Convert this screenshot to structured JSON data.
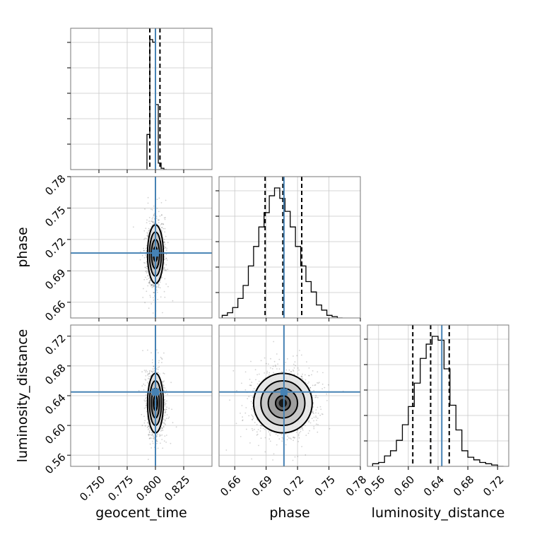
{
  "chart_data": {
    "type": "corner",
    "parameters": [
      "geocent_time",
      "phase",
      "luminosity_distance"
    ],
    "truth": {
      "geocent_time": 0.8,
      "phase": 0.707,
      "luminosity_distance": 0.645
    },
    "quantiles": {
      "geocent_time": [
        0.795,
        0.8,
        0.804
      ],
      "phase": [
        0.689,
        0.706,
        0.724
      ],
      "luminosity_distance": [
        0.606,
        0.63,
        0.655
      ]
    },
    "ranges": {
      "geocent_time": [
        0.725,
        0.85
      ],
      "phase": [
        0.645,
        0.78
      ],
      "luminosity_distance": [
        0.545,
        0.735
      ]
    },
    "ticks": {
      "geocent_time": [
        0.75,
        0.775,
        0.8,
        0.825
      ],
      "phase": [
        0.66,
        0.69,
        0.72,
        0.75,
        0.78
      ],
      "luminosity_distance": [
        0.56,
        0.6,
        0.64,
        0.68,
        0.72
      ]
    },
    "tick_labels": {
      "geocent_time": [
        "0.750",
        "0.775",
        "0.800",
        "0.825"
      ],
      "phase": [
        "0.66",
        "0.69",
        "0.72",
        "0.75",
        "0.78"
      ],
      "luminosity_distance": [
        "0.56",
        "0.60",
        "0.64",
        "0.68",
        "0.72"
      ]
    },
    "stds": {
      "geocent_time": 0.0035,
      "phase": 0.014,
      "luminosity_distance": 0.02
    },
    "histograms": {
      "geocent_time": {
        "edges": [
          0.7925,
          0.795,
          0.7975,
          0.8,
          0.8025,
          0.805,
          0.8075,
          0.81
        ],
        "counts": [
          0.27,
          1.0,
          0.98,
          0.5,
          0.05,
          0.01,
          0.0
        ]
      },
      "phase": {
        "edges": [
          0.648,
          0.653,
          0.658,
          0.663,
          0.668,
          0.673,
          0.678,
          0.683,
          0.688,
          0.693,
          0.698,
          0.703,
          0.708,
          0.713,
          0.718,
          0.723,
          0.728,
          0.733,
          0.738,
          0.743,
          0.748,
          0.753,
          0.758,
          0.763
        ],
        "counts": [
          0.02,
          0.04,
          0.08,
          0.15,
          0.25,
          0.4,
          0.55,
          0.7,
          0.81,
          0.94,
          1.0,
          0.92,
          0.82,
          0.7,
          0.55,
          0.4,
          0.28,
          0.2,
          0.1,
          0.06,
          0.02,
          0.01,
          0.0
        ]
      },
      "luminosity_distance": {
        "edges": [
          0.552,
          0.56,
          0.568,
          0.576,
          0.584,
          0.592,
          0.6,
          0.608,
          0.616,
          0.624,
          0.632,
          0.64,
          0.648,
          0.656,
          0.664,
          0.672,
          0.68,
          0.688,
          0.696,
          0.704,
          0.712,
          0.72,
          0.728
        ],
        "counts": [
          0.02,
          0.03,
          0.08,
          0.12,
          0.2,
          0.32,
          0.46,
          0.64,
          0.83,
          0.94,
          1.0,
          0.97,
          0.75,
          0.47,
          0.28,
          0.12,
          0.07,
          0.05,
          0.03,
          0.02,
          0.01,
          0.0
        ]
      }
    },
    "grid": true
  }
}
